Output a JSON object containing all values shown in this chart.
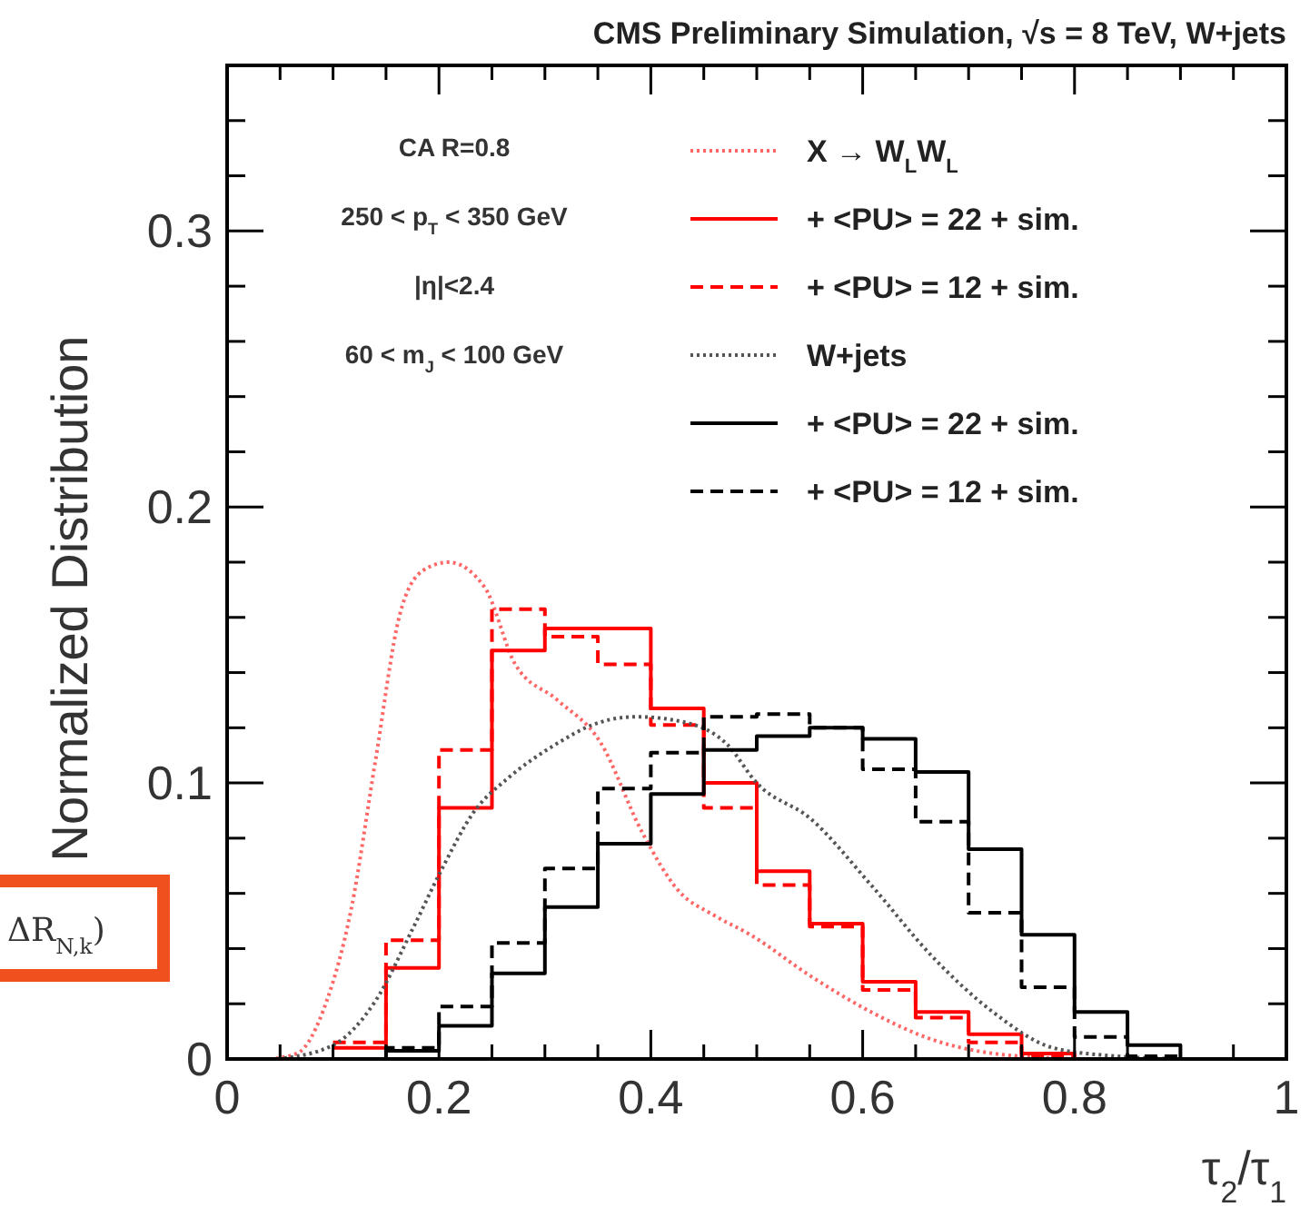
{
  "chart_data": {
    "type": "step",
    "title": "CMS Preliminary Simulation, √s = 8 TeV, W+jets",
    "xlabel": "τ$_{2}$/τ$_{1}$",
    "ylabel": "Normalized Distribution",
    "annotations": [
      "CA R=0.8",
      "250 < p$_{T}$ < 350 GeV",
      "|η|<2.4",
      "60 < m$_{J}$ < 100 GeV",
      "ΔR$_{N,k}$)"
    ],
    "x": [
      0.1,
      0.15,
      0.2,
      0.25,
      0.3,
      0.35,
      0.4,
      0.45,
      0.5,
      0.55,
      0.6,
      0.65,
      0.7,
      0.75,
      0.8,
      0.85,
      0.9
    ],
    "series": [
      {
        "name": "X → W$_{L}$W$_{L}$",
        "type": "line",
        "color": "#ff6666",
        "line_style": "dotted",
        "x": [
          0.04,
          0.066,
          0.094,
          0.117,
          0.14,
          0.163,
          0.185,
          0.209,
          0.243,
          0.272,
          0.312,
          0.352,
          0.392,
          0.426,
          0.46,
          0.494,
          0.551,
          0.608,
          0.666,
          0.723,
          0.8
        ],
        "values": [
          0,
          0.002,
          0.021,
          0.054,
          0.108,
          0.161,
          0.177,
          0.18,
          0.171,
          0.143,
          0.13,
          0.115,
          0.082,
          0.061,
          0.052,
          0.045,
          0.03,
          0.017,
          0.007,
          0.002,
          0
        ]
      },
      {
        "name": "+ <PU> = 22 + sim.",
        "color": "#ff0000",
        "line_style": "solid",
        "values": [
          0.004,
          0.033,
          0.091,
          0.148,
          0.156,
          0.156,
          0.127,
          0.1,
          0.068,
          0.049,
          0.028,
          0.017,
          0.009,
          0.002,
          0,
          0,
          0
        ]
      },
      {
        "name": "+ <PU> = 12 + sim.",
        "color": "#ff0000",
        "line_style": "dashed",
        "values": [
          0.006,
          0.043,
          0.112,
          0.163,
          0.153,
          0.143,
          0.121,
          0.091,
          0.063,
          0.048,
          0.025,
          0.015,
          0.006,
          0.001,
          0,
          0,
          0
        ]
      },
      {
        "name": "W+jets",
        "type": "line",
        "color": "#555555",
        "line_style": "dotted",
        "x": [
          0.048,
          0.1,
          0.14,
          0.175,
          0.203,
          0.232,
          0.266,
          0.306,
          0.352,
          0.386,
          0.432,
          0.472,
          0.5,
          0.551,
          0.608,
          0.666,
          0.723,
          0.78,
          0.84,
          0.9
        ],
        "values": [
          0,
          0.005,
          0.021,
          0.047,
          0.069,
          0.089,
          0.102,
          0.113,
          0.122,
          0.124,
          0.122,
          0.114,
          0.1,
          0.087,
          0.063,
          0.037,
          0.017,
          0.004,
          0.001,
          0
        ]
      },
      {
        "name": "+ <PU> = 22 + sim.",
        "color": "#000000",
        "line_style": "solid",
        "values": [
          0,
          0.003,
          0.012,
          0.031,
          0.055,
          0.078,
          0.096,
          0.112,
          0.117,
          0.12,
          0.116,
          0.104,
          0.076,
          0.045,
          0.017,
          0.005,
          0
        ]
      },
      {
        "name": "+ <PU> = 12 + sim.",
        "color": "#000000",
        "line_style": "dashed",
        "values": [
          0,
          0.004,
          0.019,
          0.042,
          0.069,
          0.098,
          0.111,
          0.124,
          0.125,
          0.12,
          0.105,
          0.086,
          0.053,
          0.026,
          0.008,
          0.001,
          0
        ]
      }
    ],
    "xlim": [
      0,
      1
    ],
    "ylim": [
      0,
      0.36
    ],
    "xticks": [
      0,
      {
        "value": 0.05,
        "label": null
      },
      {
        "value": 0.1,
        "label": null
      },
      {
        "value": 0.15,
        "label": null
      },
      0.2,
      {
        "value": 0.25,
        "label": null
      },
      {
        "value": 0.3,
        "label": null
      },
      {
        "value": 0.35,
        "label": null
      },
      0.4,
      {
        "value": 0.45,
        "label": null
      },
      {
        "value": 0.5,
        "label": null
      },
      {
        "value": 0.55,
        "label": null
      },
      0.6,
      {
        "value": 0.65,
        "label": null
      },
      {
        "value": 0.7,
        "label": null
      },
      {
        "value": 0.75,
        "label": null
      },
      0.8,
      {
        "value": 0.85,
        "label": null
      },
      {
        "value": 0.9,
        "label": null
      },
      {
        "value": 0.95,
        "label": null
      },
      1
    ],
    "yticks": [
      0,
      {
        "value": 0.02,
        "label": null
      },
      {
        "value": 0.04,
        "label": null
      },
      {
        "value": 0.06,
        "label": null
      },
      {
        "value": 0.08,
        "label": null
      },
      0.1,
      {
        "value": 0.12,
        "label": null
      },
      {
        "value": 0.14,
        "label": null
      },
      {
        "value": 0.16,
        "label": null
      },
      {
        "value": 0.18,
        "label": null
      },
      0.2,
      {
        "value": 0.22,
        "label": null
      },
      {
        "value": 0.24,
        "label": null
      },
      {
        "value": 0.26,
        "label": null
      },
      {
        "value": 0.28,
        "label": null
      },
      0.3,
      {
        "value": 0.32,
        "label": null
      },
      {
        "value": 0.34,
        "label": null
      }
    ],
    "grid": false,
    "legend": "top right"
  }
}
